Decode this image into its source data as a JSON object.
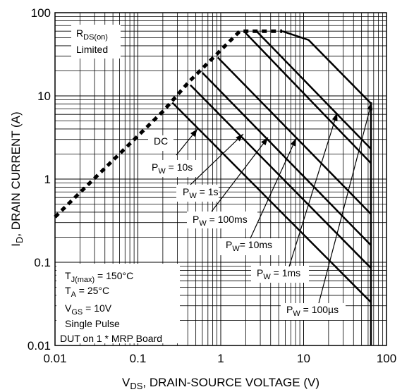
{
  "chart_data": {
    "type": "line",
    "x_scale": "log",
    "y_scale": "log",
    "xlim": [
      0.01,
      100
    ],
    "ylim": [
      0.01,
      100
    ],
    "grid": true,
    "x_ticks": [
      {
        "value": 0.01,
        "label": "0.01"
      },
      {
        "value": 0.1,
        "label": "0.1"
      },
      {
        "value": 1,
        "label": "1"
      },
      {
        "value": 10,
        "label": "10"
      },
      {
        "value": 100,
        "label": "100"
      }
    ],
    "y_ticks": [
      {
        "value": 0.01,
        "label": "0.01"
      },
      {
        "value": 0.1,
        "label": "0.1"
      },
      {
        "value": 1,
        "label": "1"
      },
      {
        "value": 10,
        "label": "10"
      },
      {
        "value": 100,
        "label": "100"
      }
    ],
    "xlabel": {
      "pre": "V",
      "sub": "DS",
      "post": ", DRAIN-SOURCE VOLTAGE (V)"
    },
    "ylabel": {
      "pre": "I",
      "sub": "D",
      "post": ", DRAIN CURRENT (A)"
    },
    "series": [
      {
        "name": "RDS(on) Limited",
        "style": "dashed",
        "points": [
          [
            0.01,
            0.35
          ],
          [
            0.2,
            6.5
          ],
          [
            0.42,
            15
          ],
          [
            1.7,
            60
          ],
          [
            5.5,
            60
          ]
        ]
      },
      {
        "name": "DC",
        "style": "solid",
        "points": [
          [
            0.26,
            8.3
          ],
          [
            65,
            0.033
          ]
        ]
      },
      {
        "name": "PW = 10s",
        "style": "solid",
        "points": [
          [
            0.43,
            13.5
          ],
          [
            65,
            0.085
          ]
        ]
      },
      {
        "name": "PW = 1s",
        "style": "solid",
        "points": [
          [
            0.6,
            19
          ],
          [
            65,
            0.16
          ]
        ]
      },
      {
        "name": "PW = 100ms",
        "style": "solid",
        "points": [
          [
            0.92,
            29
          ],
          [
            65,
            0.38
          ]
        ]
      },
      {
        "name": "PW = 10ms",
        "style": "solid",
        "points": [
          [
            1.9,
            60
          ],
          [
            65,
            1.55
          ]
        ]
      },
      {
        "name": "PW = 1ms",
        "style": "solid",
        "points": [
          [
            2.7,
            60
          ],
          [
            65,
            2.3
          ]
        ]
      },
      {
        "name": "PW = 100µs",
        "style": "solid",
        "points": [
          [
            5.5,
            60
          ],
          [
            11.5,
            47
          ],
          [
            62,
            8.5
          ],
          [
            65,
            8.1
          ],
          [
            65,
            0.01
          ]
        ]
      }
    ],
    "series_labels": [
      {
        "key": "rds",
        "lines": [
          {
            "pre": "R",
            "sub": "DS(on)",
            "post": ""
          },
          {
            "pre": "Limited",
            "sub": "",
            "post": ""
          }
        ]
      },
      {
        "key": "dc",
        "lines": [
          {
            "pre": "DC",
            "sub": "",
            "post": ""
          }
        ]
      },
      {
        "key": "pw10s",
        "lines": [
          {
            "pre": "P",
            "sub": "W",
            "post": " = 10s"
          }
        ]
      },
      {
        "key": "pw1s",
        "lines": [
          {
            "pre": "P",
            "sub": "W",
            "post": " = 1s"
          }
        ]
      },
      {
        "key": "pw100ms",
        "lines": [
          {
            "pre": "P",
            "sub": "W",
            "post": " = 100ms"
          }
        ]
      },
      {
        "key": "pw10ms",
        "lines": [
          {
            "pre": "P",
            "sub": "W",
            "post": "= 10ms"
          }
        ]
      },
      {
        "key": "pw1ms",
        "lines": [
          {
            "pre": "P",
            "sub": "W",
            "post": " = 1ms"
          }
        ]
      },
      {
        "key": "pw100us",
        "lines": [
          {
            "pre": "P",
            "sub": "W",
            "post": " = 100µs"
          }
        ]
      }
    ],
    "annotations": {
      "conditions": [
        {
          "pre": "T",
          "sub": "J(max)",
          "post": " = 150°C"
        },
        {
          "pre": "T",
          "sub": "A",
          "post": " = 25°C"
        },
        {
          "pre": "V",
          "sub": "GS",
          "post": " = 10V"
        },
        {
          "pre": "Single Pulse",
          "sub": "",
          "post": ""
        },
        {
          "pre": "DUT on 1 * MRP Board",
          "sub": "",
          "post": ""
        }
      ]
    },
    "colors": {
      "lines": "#000000",
      "grid": "#000000",
      "background": "#ffffff"
    }
  }
}
